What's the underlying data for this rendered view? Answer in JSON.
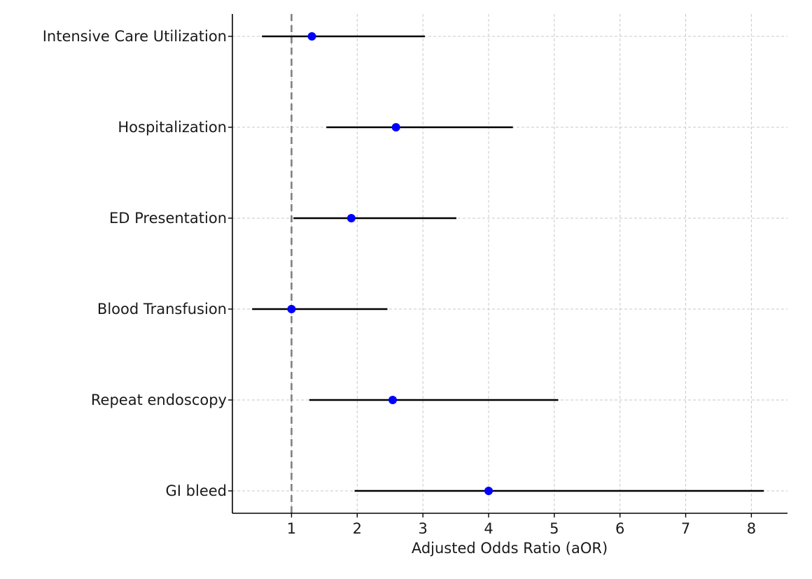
{
  "chart_data": {
    "type": "scatter",
    "subtype": "forest-plot",
    "title": "",
    "xlabel": "Adjusted Odds Ratio (aOR)",
    "ylabel": "",
    "xlim": [
      0.1,
      8.55
    ],
    "xticks": [
      1,
      2,
      3,
      4,
      5,
      6,
      7,
      8
    ],
    "xtick_labels": [
      "1",
      "2",
      "3",
      "4",
      "5",
      "6",
      "7",
      "8"
    ],
    "reference_line": 1,
    "grid": true,
    "point_color": "#0000ff",
    "ci_color": "#000000",
    "reference_color": "#808080",
    "outcomes": [
      {
        "label": "Intensive Care Utilization",
        "aor": 1.31,
        "ci_low": 0.55,
        "ci_high": 3.03
      },
      {
        "label": "Hospitalization",
        "aor": 2.59,
        "ci_low": 1.53,
        "ci_high": 4.37
      },
      {
        "label": "ED Presentation",
        "aor": 1.91,
        "ci_low": 1.03,
        "ci_high": 3.51
      },
      {
        "label": "Blood Transfusion",
        "aor": 1.0,
        "ci_low": 0.4,
        "ci_high": 2.46
      },
      {
        "label": "Repeat endoscopy",
        "aor": 2.54,
        "ci_low": 1.27,
        "ci_high": 5.06
      },
      {
        "label": "GI bleed",
        "aor": 4.0,
        "ci_low": 1.96,
        "ci_high": 8.19
      }
    ]
  }
}
